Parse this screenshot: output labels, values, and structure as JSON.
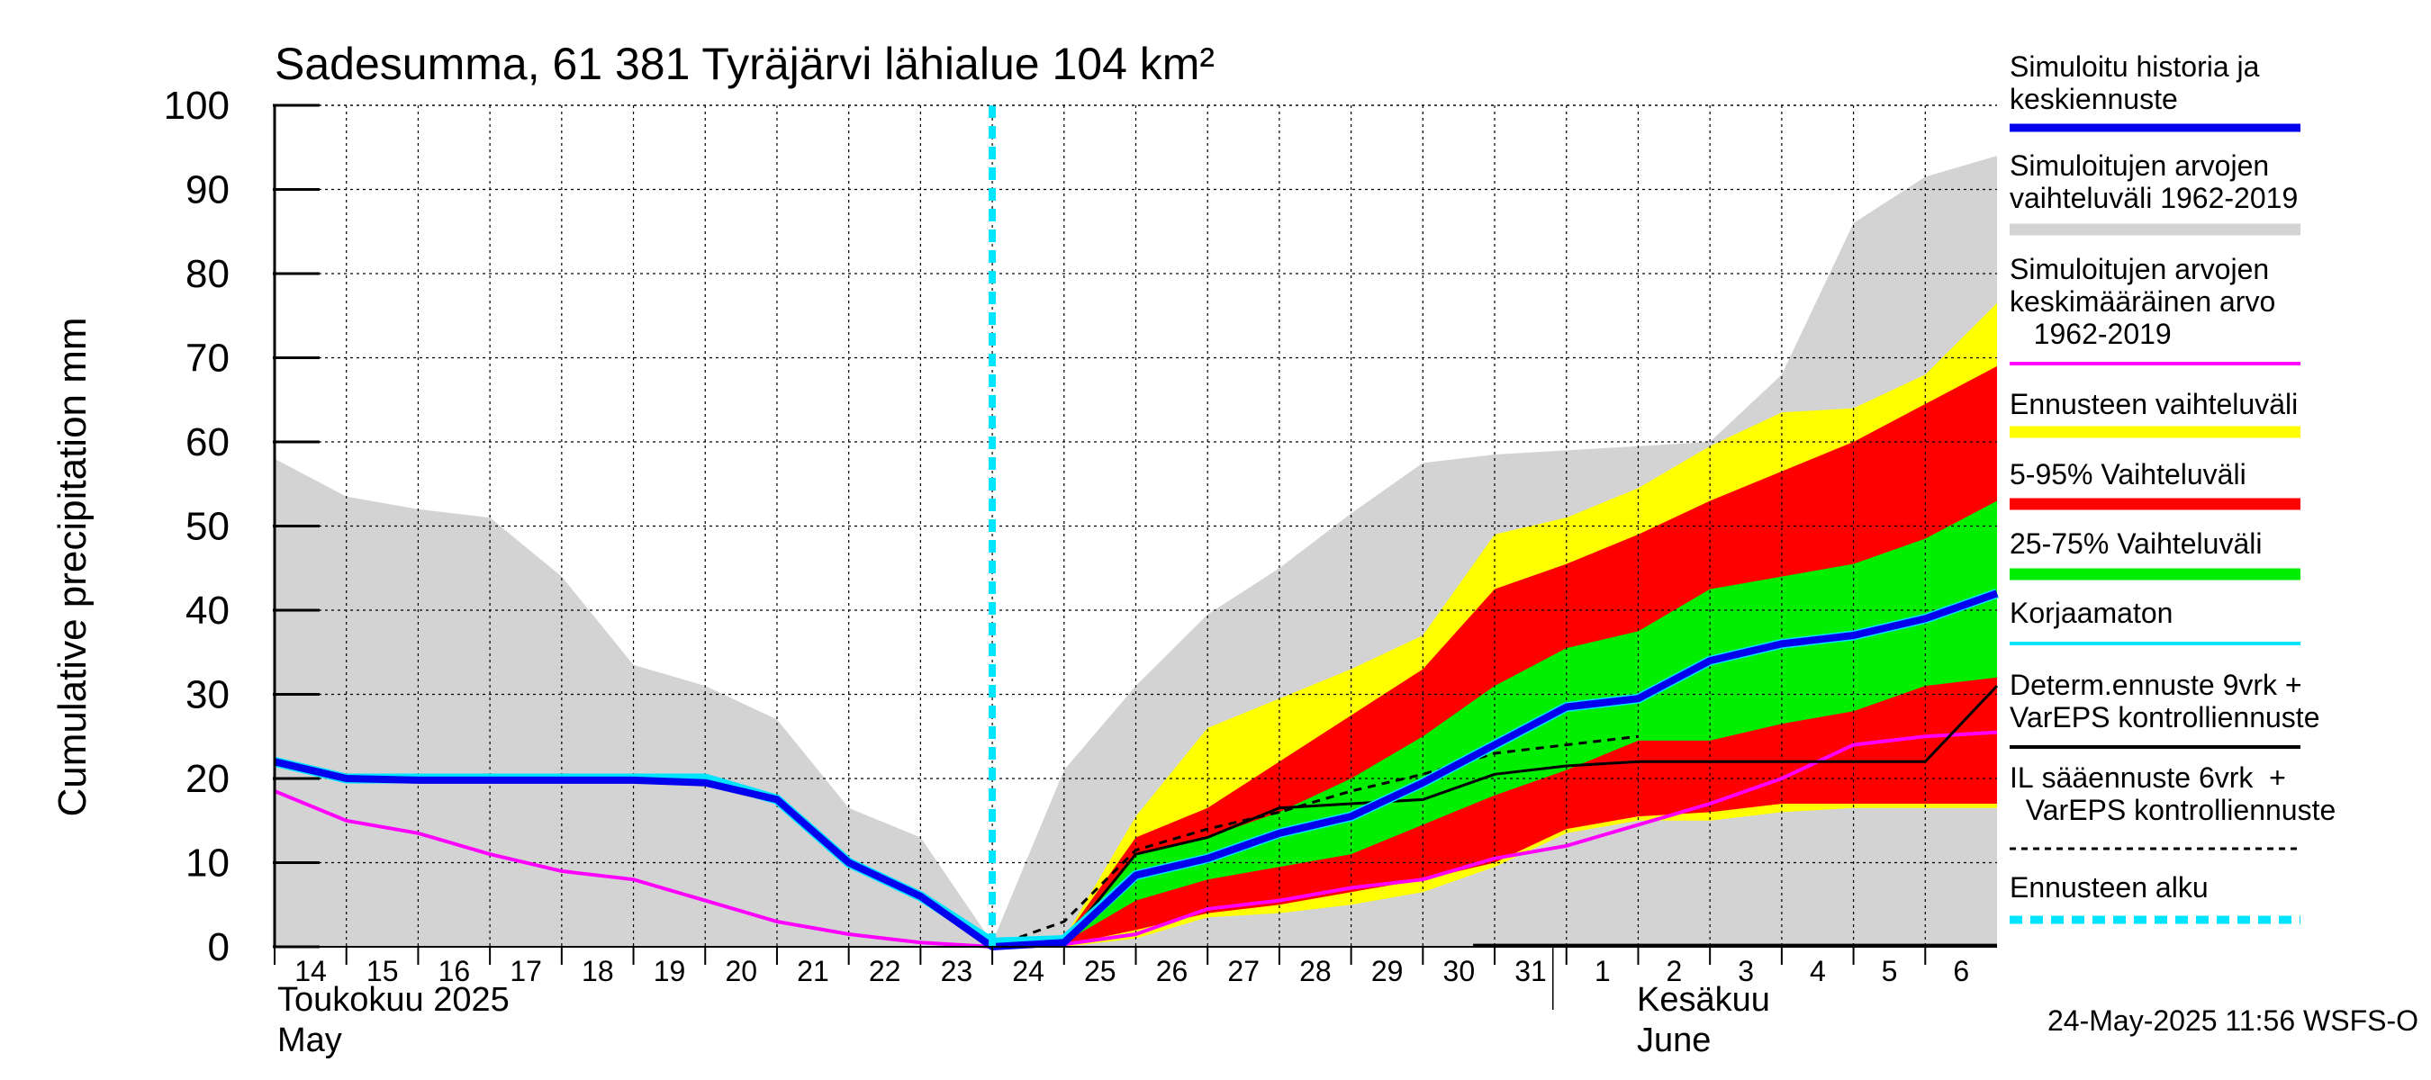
{
  "chart_data": {
    "type": "area",
    "title": "Sadesumma, 61 381 Tyräjärvi lähialue 104 km²",
    "ylabel": "Cumulative precipitation   mm",
    "ylim": [
      0,
      100
    ],
    "y_ticks": [
      0,
      10,
      20,
      30,
      40,
      50,
      60,
      70,
      80,
      90,
      100
    ],
    "x_tick_labels": [
      "14",
      "15",
      "16",
      "17",
      "18",
      "19",
      "20",
      "21",
      "22",
      "23",
      "24",
      "25",
      "26",
      "27",
      "28",
      "29",
      "30",
      "31",
      "1",
      "2",
      "3",
      "4",
      "5",
      "6"
    ],
    "month_labels": {
      "may_fi": "Toukokuu  2025",
      "may_en": "May",
      "june_fi": "Kesäkuu",
      "june_en": "June"
    },
    "x_days": [
      0,
      1,
      2,
      3,
      4,
      5,
      6,
      7,
      8,
      9,
      10,
      11,
      12,
      13,
      14,
      15,
      16,
      17,
      18,
      19,
      20,
      21,
      22,
      23,
      24
    ],
    "forecast_start_day": 10,
    "series": [
      {
        "name": "Simuloitujen arvojen vaihteluväli 1962-2019",
        "kind": "band",
        "color": "#d3d3d3",
        "upper": [
          58,
          53.5,
          52,
          51,
          44,
          33.5,
          31,
          27,
          16.5,
          13,
          0.5,
          21,
          31,
          39.5,
          45,
          51.5,
          57.5,
          58.5,
          59,
          59.5,
          60,
          68,
          86,
          91.5,
          94
        ],
        "lower": [
          0,
          0,
          0,
          0,
          0,
          0,
          0,
          0,
          0,
          0,
          0,
          0,
          0,
          0,
          0,
          0,
          0,
          0,
          0,
          0,
          0,
          0,
          0,
          0,
          0
        ]
      },
      {
        "name": "Ennusteen vaihteluväli",
        "kind": "band",
        "color": "#ffff00",
        "upper": [
          null,
          null,
          null,
          null,
          null,
          null,
          null,
          null,
          null,
          null,
          0.5,
          1,
          15.5,
          26,
          29.5,
          33,
          37,
          49,
          51,
          54.5,
          59.5,
          63.5,
          64,
          68,
          76.5
        ],
        "lower": [
          null,
          null,
          null,
          null,
          null,
          null,
          null,
          null,
          null,
          null,
          0,
          0,
          1,
          3.5,
          4,
          5,
          6.5,
          9.5,
          13.5,
          15,
          15,
          16,
          16.5,
          16.5,
          16.5
        ]
      },
      {
        "name": "5-95% Vaihteluväli",
        "kind": "band",
        "color": "#ff0000",
        "upper": [
          null,
          null,
          null,
          null,
          null,
          null,
          null,
          null,
          null,
          null,
          0.5,
          1,
          13,
          16.5,
          22,
          27.5,
          33,
          42.5,
          45.5,
          49,
          53,
          56.5,
          60,
          64.5,
          69
        ]
      },
      {
        "name": "5-95% lower",
        "kind": "band_lower",
        "color": "#ff0000",
        "lower": [
          null,
          null,
          null,
          null,
          null,
          null,
          null,
          null,
          null,
          null,
          0,
          0.2,
          2,
          4,
          5,
          6.5,
          8,
          10,
          14,
          15.5,
          16,
          17,
          17,
          17,
          17
        ]
      },
      {
        "name": "25-75% Vaihteluväli",
        "kind": "band",
        "color": "#00ee00",
        "upper": [
          null,
          null,
          null,
          null,
          null,
          null,
          null,
          null,
          null,
          null,
          0.5,
          1,
          11,
          13,
          16,
          20,
          25,
          31,
          35.5,
          37.5,
          42.5,
          44,
          45.5,
          48.5,
          53
        ],
        "lower": [
          null,
          null,
          null,
          null,
          null,
          null,
          null,
          null,
          null,
          null,
          0,
          0.5,
          5.5,
          8,
          9.5,
          11,
          14.5,
          18,
          21,
          24.5,
          24.5,
          26.5,
          28,
          31,
          32
        ]
      },
      {
        "name": "Simuloitujen arvojen keskimääräinen arvo 1962-2019",
        "kind": "line",
        "color": "#ff00ff",
        "values": [
          18.5,
          15,
          13.5,
          11,
          9,
          8,
          5.5,
          3,
          1.5,
          0.5,
          0,
          0.3,
          1.5,
          4.5,
          5.5,
          7,
          8,
          10.5,
          12,
          14.5,
          17,
          20,
          24,
          25,
          25.5
        ]
      },
      {
        "name": "Korjaamaton",
        "kind": "line",
        "color": "#00e5ff",
        "values": [
          22,
          20,
          20,
          20,
          20,
          20,
          20,
          17.5,
          10,
          6,
          0.5,
          0.8,
          8.5,
          10.5,
          13.5,
          15.5,
          19.5,
          24,
          28.5,
          29.5,
          34,
          36,
          37,
          39,
          42
        ]
      },
      {
        "name": "Simuloitu historia ja keskiennuste",
        "kind": "line",
        "color": "#0000ee",
        "values": [
          22,
          20,
          19.8,
          19.8,
          19.8,
          19.8,
          19.5,
          17.5,
          10,
          6,
          0,
          0.5,
          8.5,
          10.5,
          13.5,
          15.5,
          19.5,
          24,
          28.5,
          29.5,
          34,
          36,
          37,
          39,
          42
        ]
      },
      {
        "name": "Determ.ennuste 9vrk + VarEPS kontrolliennuste",
        "kind": "line",
        "color": "#000000",
        "values": [
          null,
          null,
          null,
          null,
          null,
          null,
          null,
          null,
          null,
          null,
          0,
          0.5,
          11,
          13,
          16.5,
          17,
          17.5,
          20.5,
          21.5,
          22,
          22,
          22,
          22,
          22,
          31
        ]
      },
      {
        "name": "IL sääennuste 6vrk + VarEPS kontrolliennuste",
        "kind": "dashed",
        "color": "#000000",
        "values": [
          null,
          null,
          null,
          null,
          null,
          null,
          null,
          null,
          null,
          null,
          0,
          3,
          11.5,
          14,
          16,
          18.5,
          20.5,
          23,
          24,
          25,
          null,
          null,
          null,
          null,
          null
        ]
      }
    ],
    "legend_placement": "right",
    "grid": true,
    "footer_timestamp": "24-May-2025 11:56 WSFS-O"
  },
  "legend": [
    {
      "label": "Simuloitu historia ja keskiennuste",
      "color": "#0000ee",
      "style": "thick"
    },
    {
      "label": "Simuloitujen arvojen vaihteluväli 1962-2019",
      "color": "#d3d3d3",
      "style": "band"
    },
    {
      "label": "Simuloitujen arvojen keskimääräinen arvo 1962-2019",
      "color": "#ff00ff",
      "style": "thin"
    },
    {
      "label": "Ennusteen vaihteluväli",
      "color": "#ffff00",
      "style": "band"
    },
    {
      "label": "5-95% Vaihteluväli",
      "color": "#ff0000",
      "style": "band"
    },
    {
      "label": "25-75% Vaihteluväli",
      "color": "#00ee00",
      "style": "band"
    },
    {
      "label": "Korjaamaton",
      "color": "#00e5ff",
      "style": "thin"
    },
    {
      "label": "Determ.ennuste 9vrk + VarEPS kontrolliennuste",
      "color": "#000000",
      "style": "thin"
    },
    {
      "label": "IL sääennuste 6vrk + VarEPS kontrolliennuste",
      "color": "#000000",
      "style": "dashed"
    },
    {
      "label": "Ennusteen alku",
      "color": "#00e5ff",
      "style": "dashedthick"
    }
  ]
}
